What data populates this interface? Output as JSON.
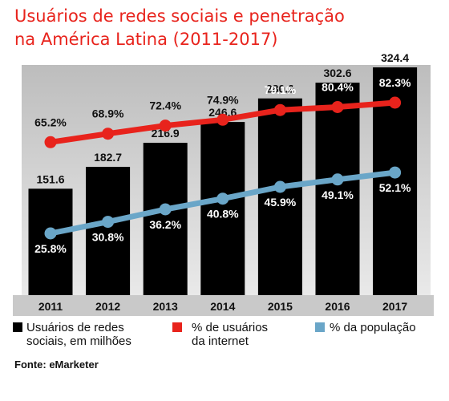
{
  "chart_data": {
    "type": "bar",
    "title_line1": "Usuários de redes sociais e penetração",
    "title_line2": "na América Latina (2011-2017)",
    "categories": [
      "2011",
      "2012",
      "2013",
      "2014",
      "2015",
      "2016",
      "2017"
    ],
    "bars": {
      "name_line1": "Usuários de redes",
      "name_line2": "sociais, em milhões",
      "values": [
        151.6,
        182.7,
        216.9,
        246.6,
        280.2,
        302.6,
        324.4
      ],
      "labels": [
        "151.6",
        "182.7",
        "216.9",
        "246.6",
        "280.2",
        "302.6",
        "324.4"
      ],
      "color": "#000000"
    },
    "lines": [
      {
        "name_line1": "% de usuários",
        "name_line2": "da internet",
        "values": [
          65.2,
          68.9,
          72.4,
          74.9,
          79.1,
          80.4,
          82.3
        ],
        "labels": [
          "65.2%",
          "68.9%",
          "72.4%",
          "74.9%",
          "79.1%",
          "80.4%",
          "82.3%"
        ],
        "color": "#e8231c"
      },
      {
        "name_line1": "% da população",
        "name_line2": "",
        "values": [
          25.8,
          30.8,
          36.2,
          40.8,
          45.9,
          49.1,
          52.1
        ],
        "labels": [
          "25.8%",
          "30.8%",
          "36.2%",
          "40.8%",
          "45.9%",
          "49.1%",
          "52.1%"
        ],
        "color": "#6aa6c8"
      }
    ],
    "ylim_bars": [
      0,
      340
    ],
    "ylim_pct": [
      0,
      100
    ],
    "grid": false,
    "legend_position": "bottom"
  },
  "source": "Fonte: eMarketer"
}
